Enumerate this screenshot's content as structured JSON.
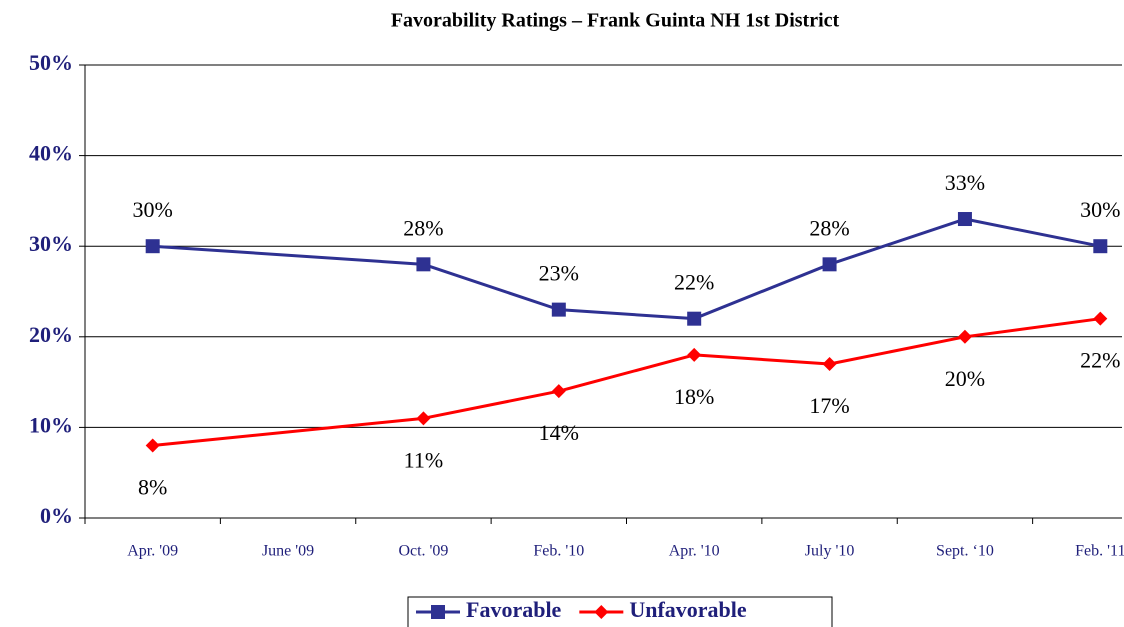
{
  "chart_data": {
    "type": "line",
    "title": "Favorability Ratings – Frank Guinta NH 1st District",
    "categories": [
      "Apr. '09",
      "June '09",
      "Oct. '09",
      "Feb. '10",
      "Apr. '10",
      "July '10",
      "Sept. ‘10",
      "Feb. '11"
    ],
    "series": [
      {
        "name": "Favorable",
        "color": "#2e3192",
        "marker": "square",
        "values": [
          30,
          null,
          28,
          23,
          22,
          28,
          33,
          30
        ],
        "value_labels": [
          "30%",
          null,
          "28%",
          "23%",
          "22%",
          "28%",
          "33%",
          "30%"
        ]
      },
      {
        "name": "Unfavorable",
        "color": "#ff0000",
        "marker": "diamond",
        "values": [
          8,
          null,
          11,
          14,
          18,
          17,
          20,
          22
        ],
        "value_labels": [
          "8%",
          null,
          "11%",
          "14%",
          "18%",
          "17%",
          "20%",
          "22%"
        ]
      }
    ],
    "ylim": [
      0,
      50
    ],
    "yticks": [
      {
        "value": 0,
        "label": "0%"
      },
      {
        "value": 10,
        "label": "10%"
      },
      {
        "value": 20,
        "label": "20%"
      },
      {
        "value": 30,
        "label": "30%"
      },
      {
        "value": 40,
        "label": "40%"
      },
      {
        "value": 50,
        "label": "50%"
      }
    ],
    "grid": true,
    "span_gaps": true,
    "legend": "bottom"
  }
}
